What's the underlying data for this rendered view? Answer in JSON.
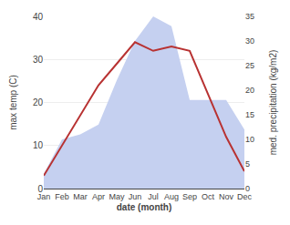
{
  "chart_data": {
    "type": "line",
    "xlabel": "date (month)",
    "ylabel": "max temp (C)",
    "y2label": "med. precipitation (kg/m2)",
    "categories": [
      "Jan",
      "Feb",
      "Mar",
      "Apr",
      "May",
      "Jun",
      "Jul",
      "Aug",
      "Sep",
      "Oct",
      "Nov",
      "Dec"
    ],
    "series": [
      {
        "type": "area",
        "axis": "y2",
        "color": "#c5d0f0",
        "values": [
          3,
          10,
          11,
          13,
          22,
          30,
          35,
          33,
          18,
          18,
          18,
          12
        ]
      },
      {
        "type": "line",
        "axis": "y",
        "color": "#b83232",
        "values": [
          3,
          10,
          17,
          24,
          29,
          34,
          32,
          33,
          32,
          22,
          12,
          4
        ]
      }
    ],
    "ylim": [
      0,
      40
    ],
    "yticks": [
      0,
      10,
      20,
      30,
      40
    ],
    "y2lim": [
      0,
      35
    ],
    "y2ticks": [
      0,
      5,
      10,
      15,
      20,
      25,
      30,
      35
    ],
    "grid": true
  }
}
